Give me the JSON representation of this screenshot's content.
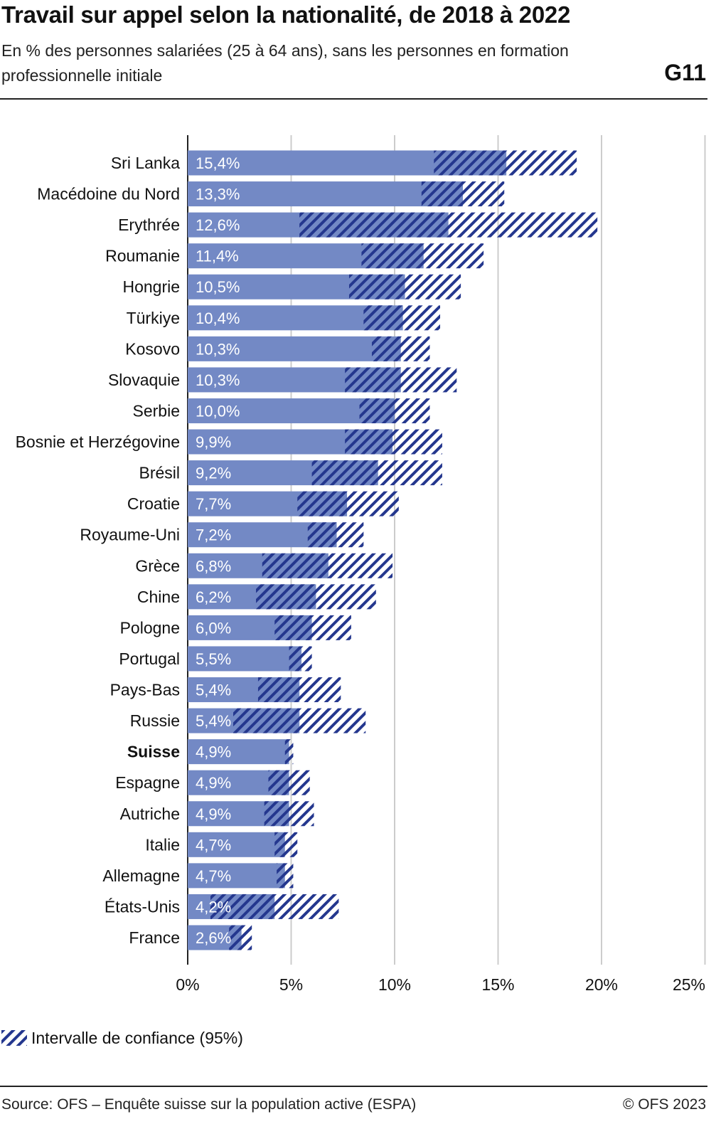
{
  "header": {
    "title": "Travail sur appel selon la nationalité, de 2018 à 2022",
    "subtitle": "En % des personnes salariées (25 à 64 ans), sans les personnes en formation professionnelle initiale",
    "code": "G11"
  },
  "footer": {
    "source": "Source: OFS – Enquête suisse sur la population active (ESPA)",
    "copyright": "© OFS 2023"
  },
  "legend": {
    "ci_label": "Intervalle de confiance (95%)"
  },
  "colors": {
    "bar": "#7389c5",
    "hatch": "#24378e",
    "grid": "#cccccc",
    "axis": "#222222"
  },
  "chart_data": {
    "type": "bar",
    "orientation": "horizontal",
    "xlim": [
      0,
      25
    ],
    "x_ticks": [
      "0%",
      "5%",
      "10%",
      "15%",
      "20%",
      "25%"
    ],
    "grid": true,
    "legend_position": "bottom-left",
    "highlighted_category": "Suisse",
    "categories": [
      "Sri Lanka",
      "Macédoine du Nord",
      "Erythrée",
      "Roumanie",
      "Hongrie",
      "Türkiye",
      "Kosovo",
      "Slovaquie",
      "Serbie",
      "Bosnie et Herzégovine",
      "Brésil",
      "Croatie",
      "Royaume-Uni",
      "Grèce",
      "Chine",
      "Pologne",
      "Portugal",
      "Pays-Bas",
      "Russie",
      "Suisse",
      "Espagne",
      "Autriche",
      "Italie",
      "Allemagne",
      "États-Unis",
      "France"
    ],
    "values": [
      15.4,
      13.3,
      12.6,
      11.4,
      10.5,
      10.4,
      10.3,
      10.3,
      10.0,
      9.9,
      9.2,
      7.7,
      7.2,
      6.8,
      6.2,
      6.0,
      5.5,
      5.4,
      5.4,
      4.9,
      4.9,
      4.9,
      4.7,
      4.7,
      4.2,
      2.6
    ],
    "value_labels": [
      "15,4%",
      "13,3%",
      "12,6%",
      "11,4%",
      "10,5%",
      "10,4%",
      "10,3%",
      "10,3%",
      "10,0%",
      "9,9%",
      "9,2%",
      "7,7%",
      "7,2%",
      "6,8%",
      "6,2%",
      "6,0%",
      "5,5%",
      "5,4%",
      "5,4%",
      "4,9%",
      "4,9%",
      "4,9%",
      "4,7%",
      "4,7%",
      "4,2%",
      "2,6%"
    ],
    "ci_low": [
      11.9,
      11.3,
      5.4,
      8.4,
      7.8,
      8.5,
      8.9,
      7.6,
      8.3,
      7.6,
      6.0,
      5.3,
      5.8,
      3.6,
      3.3,
      4.2,
      4.9,
      3.4,
      2.2,
      4.7,
      3.9,
      3.7,
      4.2,
      4.3,
      1.1,
      2.0
    ],
    "ci_high": [
      18.8,
      15.3,
      19.8,
      14.3,
      13.2,
      12.2,
      11.7,
      13.0,
      11.7,
      12.3,
      12.3,
      10.2,
      8.5,
      9.9,
      9.1,
      7.9,
      6.0,
      7.4,
      8.6,
      5.1,
      5.9,
      6.1,
      5.3,
      5.1,
      7.3,
      3.1
    ]
  }
}
